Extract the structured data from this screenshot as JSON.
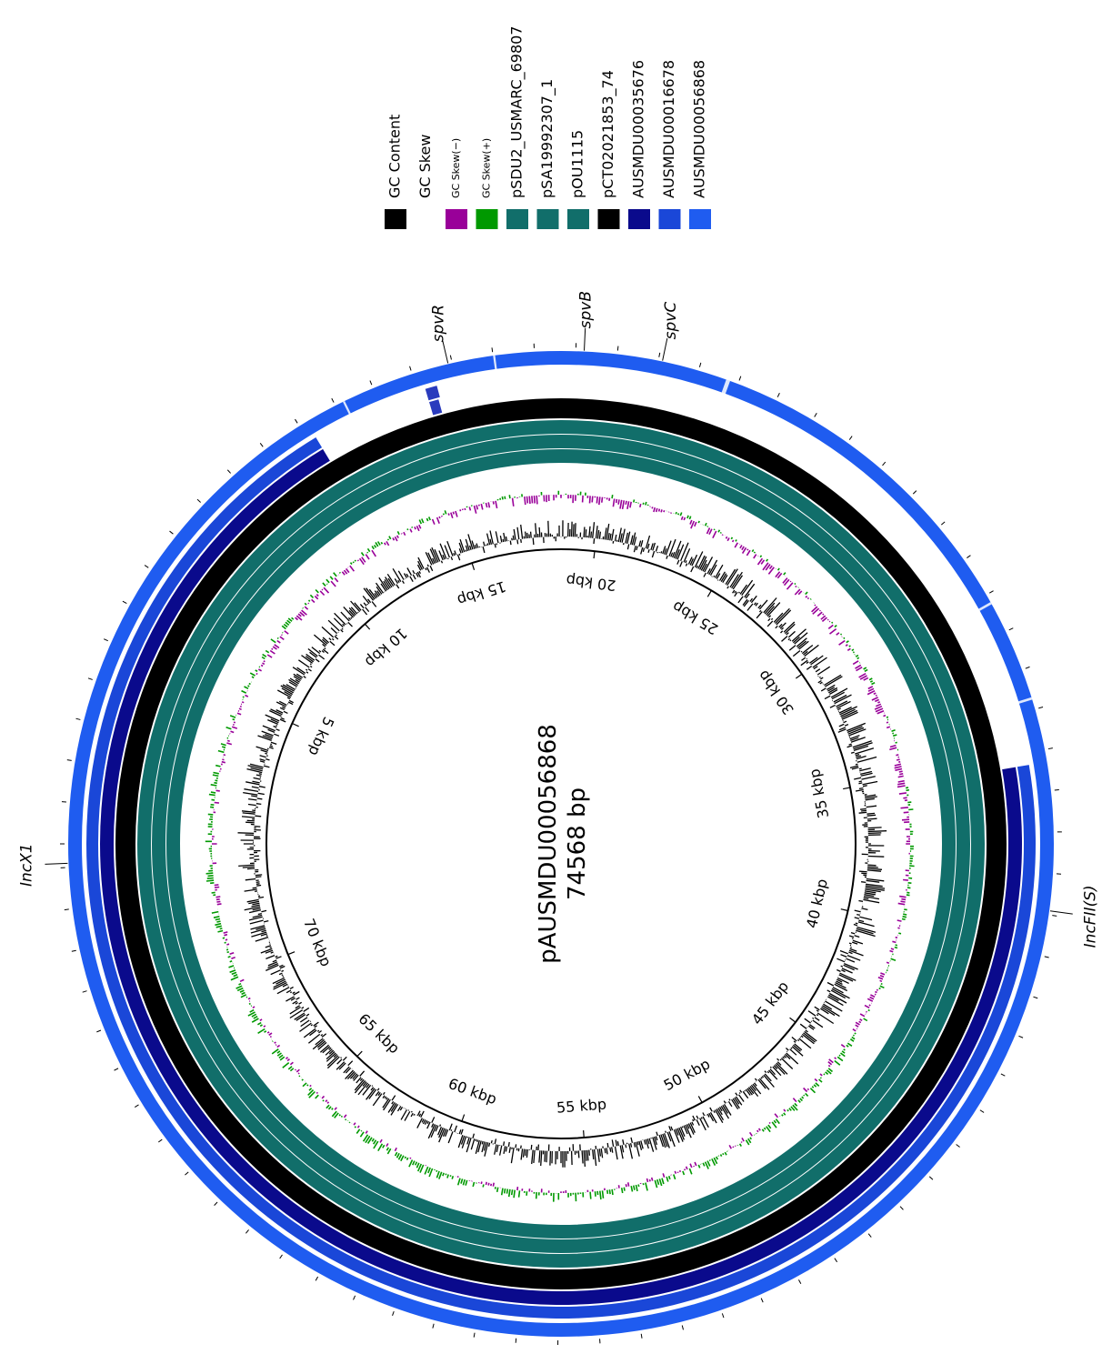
{
  "plasmid": {
    "name": "pAUSMDU00056868",
    "length_label": "74568 bp",
    "length_bp": 74568
  },
  "kbp_ticks": [
    "5 kbp",
    "10 kbp",
    "15 kbp",
    "20 kbp",
    "25 kbp",
    "30 kbp",
    "35 kbp",
    "40 kbp",
    "45 kbp",
    "50 kbp",
    "55 kbp",
    "60 kbp",
    "65 kbp",
    "70 kbp"
  ],
  "legend": [
    {
      "label": "GC Content",
      "color": "#000000",
      "size": "normal"
    },
    {
      "label": "GC Skew",
      "color": null,
      "size": "normal"
    },
    {
      "label": "GC Skew(−)",
      "color": "#990099",
      "size": "small"
    },
    {
      "label": "GC Skew(+)",
      "color": "#009900",
      "size": "small"
    },
    {
      "label": "pSDU2_USMARC_69807",
      "color": "#116e6a",
      "size": "normal"
    },
    {
      "label": "pSA19992307_1",
      "color": "#116e6a",
      "size": "normal"
    },
    {
      "label": "pOU1115",
      "color": "#116e6a",
      "size": "normal"
    },
    {
      "label": "pCT02021853_74",
      "color": "#000000",
      "size": "normal"
    },
    {
      "label": "AUSMDU00035676",
      "color": "#0a0a8c",
      "size": "normal"
    },
    {
      "label": "AUSMDU00016678",
      "color": "#1a47d8",
      "size": "normal"
    },
    {
      "label": "AUSMDU00056868",
      "color": "#1f5cf0",
      "size": "normal"
    }
  ],
  "rings": [
    {
      "name": "pSDU2_USMARC_69807",
      "color": "#116e6a",
      "gaps_bp": []
    },
    {
      "name": "pSA19992307_1",
      "color": "#116e6a",
      "gaps_bp": []
    },
    {
      "name": "pOU1115",
      "color": "#116e6a",
      "gaps_bp": []
    },
    {
      "name": "pCT02021853_74",
      "color": "#000000",
      "gaps_bp": []
    },
    {
      "name": "AUSMDU00035676",
      "color": "#0a0a8c",
      "gaps_bp": [
        [
          12200,
          35300
        ]
      ]
    },
    {
      "name": "AUSMDU00016678",
      "color": "#1a47d8",
      "gaps_bp": [
        [
          12200,
          35300
        ]
      ]
    },
    {
      "name": "AUSMDU00056868",
      "color": "#1f5cf0",
      "gaps_bp": []
    }
  ],
  "genes": [
    {
      "label": "spvR",
      "position_bp": 15900
    },
    {
      "label": "spvB",
      "position_bp": 19200
    },
    {
      "label": "spvC",
      "position_bp": 21100
    },
    {
      "label": "IncX1",
      "position_bp": 74100
    },
    {
      "label": "IncFII(S)",
      "position_bp": 38900
    }
  ],
  "colors": {
    "gc_content": "#000000",
    "gc_skew_negative": "#990099",
    "gc_skew_positive": "#009900"
  }
}
